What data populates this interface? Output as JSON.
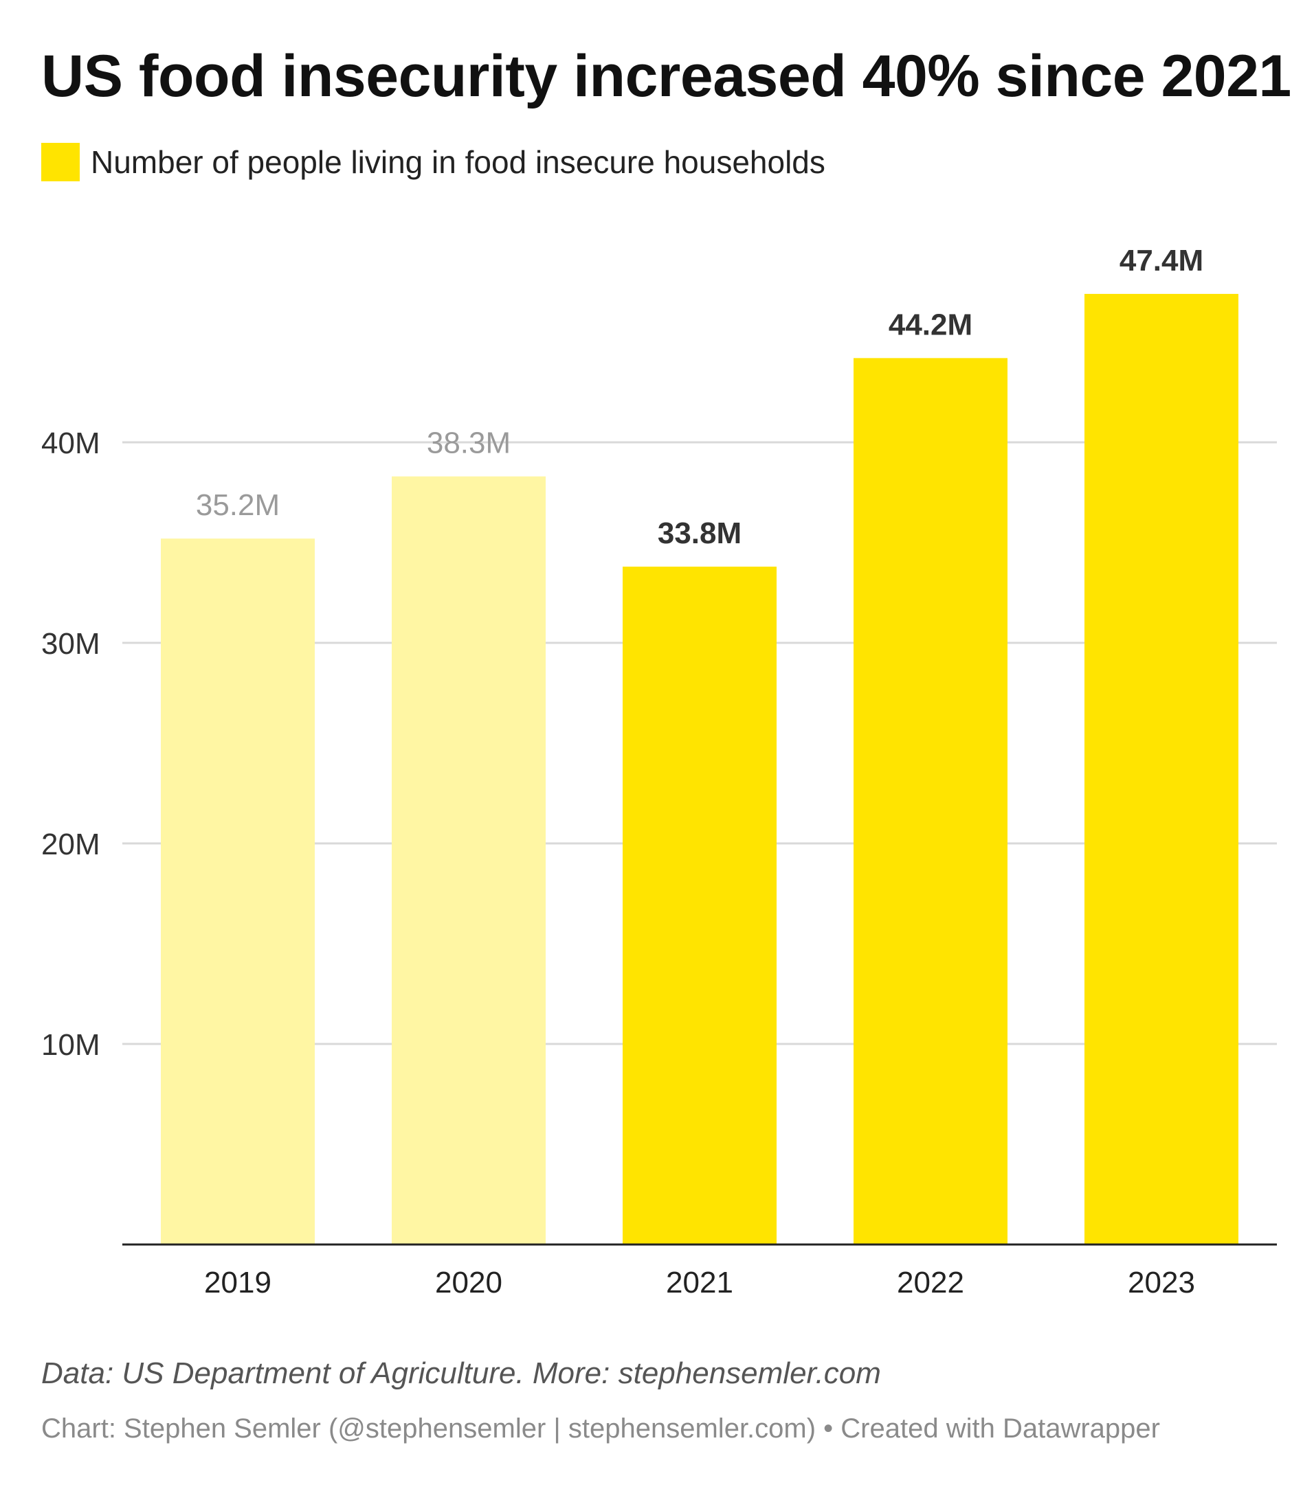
{
  "chart_data": {
    "type": "bar",
    "title": "US food insecurity increased 40% since 2021",
    "legend": {
      "label": "Number of people living in food insecure households",
      "color": "#FFE400",
      "position": "top-left"
    },
    "categories": [
      "2019",
      "2020",
      "2021",
      "2022",
      "2023"
    ],
    "series": [
      {
        "name": "Number of people living in food insecure households",
        "values": [
          35.2,
          38.3,
          33.8,
          44.2,
          47.4
        ],
        "labels": [
          "35.2M",
          "38.3M",
          "33.8M",
          "44.2M",
          "47.4M"
        ],
        "highlighted": [
          false,
          false,
          true,
          true,
          true
        ]
      }
    ],
    "y_ticks": [
      {
        "value": 10,
        "label": "10M"
      },
      {
        "value": 20,
        "label": "20M"
      },
      {
        "value": 30,
        "label": "30M"
      },
      {
        "value": 40,
        "label": "40M"
      }
    ],
    "ylim": [
      0,
      50
    ],
    "grid": true,
    "colors": {
      "highlight": "#FFE400",
      "muted": "#FFF6A3",
      "label_strong": "#333333",
      "label_muted": "#9a9a9a",
      "grid": "#d9d9d9",
      "axis": "#222222"
    }
  },
  "footer": {
    "source": "Data: US Department of Agriculture. More: stephensemler.com",
    "credit": "Chart: Stephen Semler (@stephensemler | stephensemler.com) • Created with Datawrapper"
  }
}
